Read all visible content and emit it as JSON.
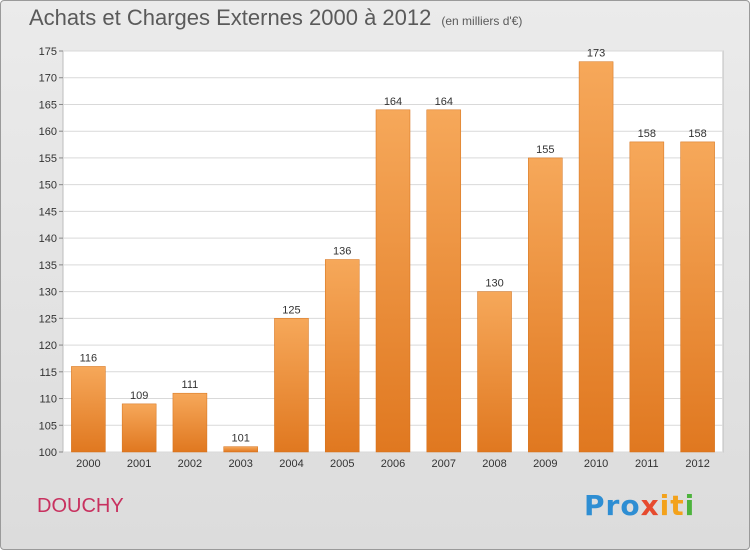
{
  "title": "Achats et Charges Externes 2000 à 2012",
  "subtitle": "(en milliers d'€)",
  "commune": "DOUCHY",
  "logo": {
    "text": "Proxiti",
    "parts": [
      "Pro",
      "x",
      "it",
      "i"
    ]
  },
  "colors": {
    "bar_top": "#f6a85a",
    "bar_bottom": "#e07820",
    "accent": "#c8315f"
  },
  "chart_data": {
    "type": "bar",
    "categories": [
      "2000",
      "2001",
      "2002",
      "2003",
      "2004",
      "2005",
      "2006",
      "2007",
      "2008",
      "2009",
      "2010",
      "2011",
      "2012"
    ],
    "values": [
      116,
      109,
      111,
      101,
      125,
      136,
      164,
      164,
      130,
      155,
      173,
      158,
      158
    ],
    "data_labels": [
      "116",
      "109",
      "111",
      "101",
      "125",
      "136",
      "164",
      "164",
      "130",
      "155",
      "173",
      "158",
      "158"
    ],
    "yticks": [
      100,
      105,
      110,
      115,
      120,
      125,
      130,
      135,
      140,
      145,
      150,
      155,
      160,
      165,
      170,
      175
    ],
    "ylim": [
      100,
      175
    ],
    "grid": true,
    "xlabel": "",
    "ylabel": ""
  }
}
